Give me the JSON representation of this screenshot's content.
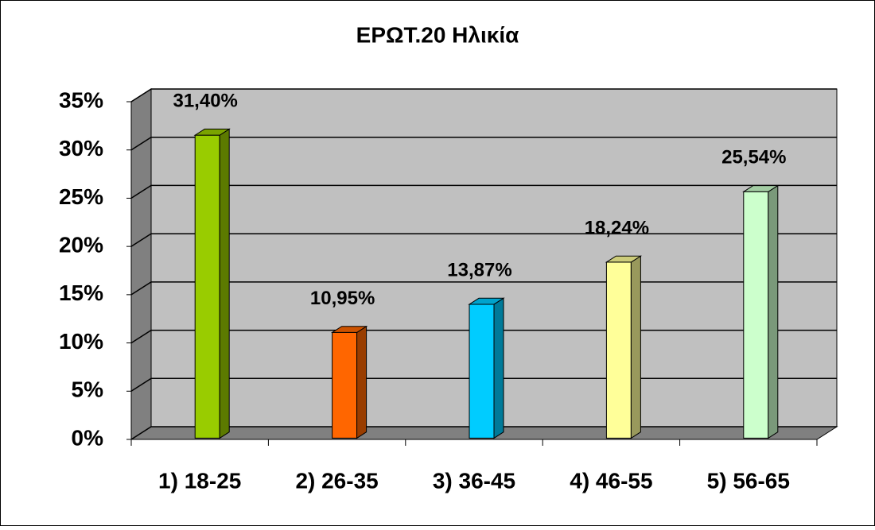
{
  "chart_data": {
    "type": "bar3d",
    "title": "ΕΡΩΤ.20  Ηλικία",
    "categories": [
      "1) 18-25",
      "2) 26-35",
      "3) 36-45",
      "4) 46-55",
      "5) 56-65"
    ],
    "values": [
      31.4,
      10.95,
      13.87,
      18.24,
      25.54
    ],
    "value_labels": [
      "31,40%",
      "10,95%",
      "13,87%",
      "18,24%",
      "25,54%"
    ],
    "colors": [
      "#99cc00",
      "#ff6600",
      "#00ccff",
      "#ffff99",
      "#ccffcc"
    ],
    "ylim": [
      0,
      35
    ],
    "yticks": [
      {
        "value": 0,
        "label": "0%"
      },
      {
        "value": 5,
        "label": "5%"
      },
      {
        "value": 10,
        "label": "10%"
      },
      {
        "value": 15,
        "label": "15%"
      },
      {
        "value": 20,
        "label": "20%"
      },
      {
        "value": 25,
        "label": "25%"
      },
      {
        "value": 30,
        "label": "30%"
      },
      {
        "value": 35,
        "label": "35%"
      }
    ],
    "grid": true
  }
}
